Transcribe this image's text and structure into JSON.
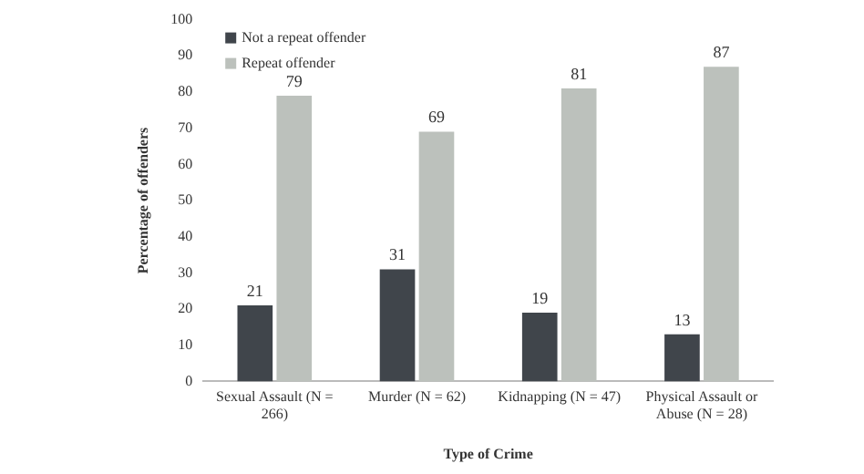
{
  "chart_data": {
    "type": "bar",
    "xlabel": "Type of Crime",
    "ylabel": "Percentage of offenders",
    "categories": [
      "Sexual Assault (N = 266)",
      "Murder (N = 62)",
      "Kidnapping (N = 47)",
      "Physical Assault or Abuse (N = 28)"
    ],
    "series": [
      {
        "name": "Not a repeat offender",
        "color": "#40454b",
        "values": [
          21,
          31,
          19,
          13
        ]
      },
      {
        "name": "Repeat offender",
        "color": "#bcc1bc",
        "values": [
          79,
          69,
          81,
          87
        ]
      }
    ],
    "ylim": [
      0,
      100
    ],
    "yticks": [
      0,
      10,
      20,
      30,
      40,
      50,
      60,
      70,
      80,
      90,
      100
    ],
    "grid": false,
    "legend": "top left",
    "data_labels": true
  }
}
